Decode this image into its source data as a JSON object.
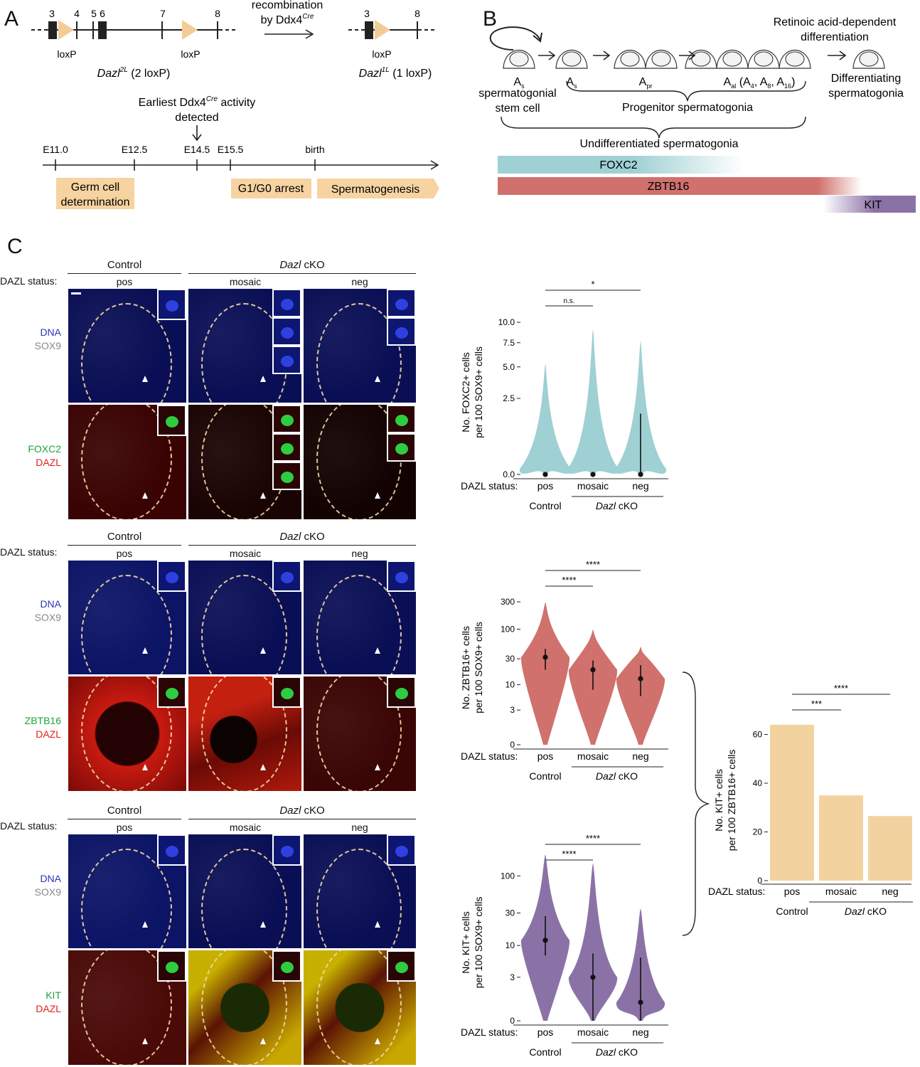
{
  "panels": {
    "a": "A",
    "b": "B",
    "c": "C"
  },
  "panel_a": {
    "exon_numbers": [
      "3",
      "4",
      "5",
      "6",
      "7",
      "8"
    ],
    "exon_numbers_right": [
      "3",
      "8"
    ],
    "loxp": "loxP",
    "allele_2l": "Dazl",
    "allele_2l_sup": "2L",
    "allele_2l_suffix": "(2 loxP)",
    "allele_1l": "Dazl",
    "allele_1l_sup": "1L",
    "allele_1l_suffix": "(1 loxP)",
    "recombination_line1": "recombination",
    "recombination_line2": "by Ddx4",
    "recombination_sup": "Cre",
    "cre_note_line1": "Earliest Ddx4",
    "cre_note_sup": "Cre",
    "cre_note_line1_end": "activity",
    "cre_note_line2": "detected",
    "timeline_ticks": [
      "E11.0",
      "E12.5",
      "E14.5",
      "E15.5",
      "birth"
    ],
    "box_germ_line1": "Germ cell",
    "box_germ_line2": "determination",
    "box_arrest": "G1/G0 arrest",
    "box_spermatogenesis": "Spermatogenesis"
  },
  "panel_b": {
    "ra_line1": "Retinoic acid-dependent",
    "ra_line2": "differentiation",
    "as_label": "A",
    "as_sub": "s",
    "apr_label": "A",
    "apr_sub": "pr",
    "aal_label": "A",
    "aal_sub": "al",
    "aal_paren": "(A",
    "aal_4": "4",
    "aal_8": "8",
    "aal_16": "16",
    "ssc_line1": "spermatogonial",
    "ssc_line2": "stem cell",
    "diff_line1": "Differentiating",
    "diff_line2": "spermatogonia",
    "progenitor": "Progenitor spermatogonia",
    "undiff": "Undifferentiated spermatogonia",
    "bars": [
      {
        "name": "FOXC2",
        "color": "#9fd0d3"
      },
      {
        "name": "ZBTB16",
        "color": "#d0716d"
      },
      {
        "name": "KIT",
        "color": "#8b72a6"
      }
    ]
  },
  "panel_c": {
    "control": "Control",
    "cko_italic": "Dazl",
    "cko_rest": "cKO",
    "status_label": "DAZL status:",
    "statuses": [
      "pos",
      "mosaic",
      "neg"
    ],
    "stains": [
      {
        "top1": "DNA",
        "top2": "SOX9",
        "bottom1": "FOXC2",
        "bottom2": "DAZL"
      },
      {
        "top1": "DNA",
        "top2": "SOX9",
        "bottom1": "ZBTB16",
        "bottom2": "DAZL"
      },
      {
        "top1": "DNA",
        "top2": "SOX9",
        "bottom1": "KIT",
        "bottom2": "DAZL"
      }
    ]
  },
  "chart_data": [
    {
      "type": "violin",
      "ylabel_line1": "No. FOXC2+ cells",
      "ylabel_line2": "per 100 SOX9+ cells",
      "scale": "sqrt",
      "yticks": [
        "0.0",
        "2.5",
        "5.0",
        "7.5",
        "10.0"
      ],
      "ytick_values": [
        0,
        2.5,
        5,
        7.5,
        10
      ],
      "categories": [
        "pos",
        "mosaic",
        "neg"
      ],
      "group_labels": [
        "Control",
        "Dazl cKO"
      ],
      "color": "#9fd0d3",
      "max": [
        5.3,
        9.1,
        7.7
      ],
      "median": [
        0,
        0,
        0
      ],
      "whisker_high": [
        0,
        0,
        1.6
      ],
      "significance": [
        {
          "pair": [
            "pos",
            "mosaic"
          ],
          "label": "n.s."
        },
        {
          "pair": [
            "pos",
            "neg"
          ],
          "label": "*"
        }
      ]
    },
    {
      "type": "violin",
      "ylabel_line1": "No. ZBTB16+ cells",
      "ylabel_line2": "per 100 SOX9+ cells",
      "scale": "log1p",
      "yticks": [
        "0",
        "3",
        "10",
        "30",
        "100",
        "300"
      ],
      "ytick_values": [
        0,
        3,
        10,
        30,
        100,
        300
      ],
      "categories": [
        "pos",
        "mosaic",
        "neg"
      ],
      "group_labels": [
        "Control",
        "Dazl cKO"
      ],
      "color": "#d0716d",
      "max": [
        300,
        100,
        50
      ],
      "median": [
        32,
        19,
        13
      ],
      "whisker_low": [
        19,
        8,
        6
      ],
      "whisker_high": [
        45,
        28,
        23
      ],
      "significance": [
        {
          "pair": [
            "pos",
            "mosaic"
          ],
          "label": "****"
        },
        {
          "pair": [
            "pos",
            "neg"
          ],
          "label": "****"
        }
      ]
    },
    {
      "type": "violin",
      "ylabel_line1": "No. KIT+ cells",
      "ylabel_line2": "per 100 SOX9+ cells",
      "scale": "log1p",
      "yticks": [
        "0",
        "3",
        "10",
        "30",
        "100"
      ],
      "ytick_values": [
        0,
        3,
        10,
        30,
        100
      ],
      "categories": [
        "pos",
        "mosaic",
        "neg"
      ],
      "group_labels": [
        "Control",
        "Dazl cKO"
      ],
      "color": "#8b72a6",
      "max": [
        200,
        150,
        35
      ],
      "median": [
        12,
        3,
        0.8
      ],
      "whisker_low": [
        7,
        0,
        0
      ],
      "whisker_high": [
        27,
        7.5,
        6.5
      ],
      "significance": [
        {
          "pair": [
            "pos",
            "mosaic"
          ],
          "label": "****"
        },
        {
          "pair": [
            "pos",
            "neg"
          ],
          "label": "****"
        }
      ]
    },
    {
      "type": "bar",
      "ylabel_line1": "No. KIT+ cells",
      "ylabel_line2": "per 100 ZBTB16+ cells",
      "yticks": [
        "0",
        "20",
        "40",
        "60"
      ],
      "ytick_values": [
        0,
        20,
        40,
        60
      ],
      "ylim": [
        0,
        66
      ],
      "categories": [
        "pos",
        "mosaic",
        "neg"
      ],
      "values": [
        64,
        35,
        26.5
      ],
      "group_labels": [
        "Control",
        "Dazl cKO"
      ],
      "color": "#f2d39f",
      "significance": [
        {
          "pair": [
            "pos",
            "mosaic"
          ],
          "label": "***"
        },
        {
          "pair": [
            "pos",
            "neg"
          ],
          "label": "****"
        }
      ]
    }
  ]
}
